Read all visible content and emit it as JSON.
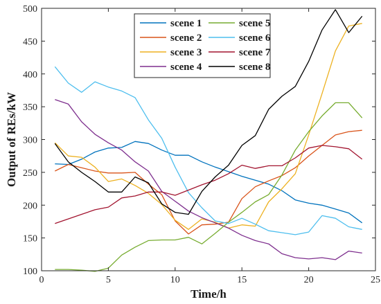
{
  "chart_data": {
    "type": "line",
    "xlabel": "Time/h",
    "ylabel": "Output of REs/kW",
    "xlim": [
      0,
      25
    ],
    "ylim": [
      100,
      500
    ],
    "xticks": [
      "0",
      "5",
      "10",
      "15",
      "20",
      "25"
    ],
    "yticks": [
      "100",
      "150",
      "200",
      "250",
      "300",
      "350",
      "400",
      "450",
      "500"
    ],
    "grid": false,
    "legend_position": "top-center",
    "legend_columns": 2,
    "x": [
      1,
      2,
      3,
      4,
      5,
      6,
      7,
      8,
      9,
      10,
      11,
      12,
      13,
      14,
      15,
      16,
      17,
      18,
      19,
      20,
      21,
      22,
      23,
      24
    ],
    "series": [
      {
        "name": "scene 1",
        "color": "#0072BD",
        "values": [
          263,
          262,
          270,
          281,
          287,
          288,
          297,
          294,
          284,
          276,
          276,
          266,
          258,
          251,
          244,
          238,
          232,
          222,
          208,
          203,
          200,
          194,
          188,
          173
        ]
      },
      {
        "name": "scene 2",
        "color": "#D95319",
        "values": [
          252,
          262,
          257,
          252,
          249,
          249,
          250,
          232,
          216,
          176,
          156,
          170,
          171,
          174,
          210,
          228,
          237,
          245,
          257,
          275,
          291,
          307,
          312,
          314
        ]
      },
      {
        "name": "scene 3",
        "color": "#EDB120",
        "values": [
          295,
          275,
          273,
          258,
          236,
          240,
          230,
          218,
          201,
          177,
          163,
          179,
          174,
          165,
          170,
          168,
          205,
          225,
          248,
          307,
          370,
          435,
          473,
          477
        ]
      },
      {
        "name": "scene 4",
        "color": "#7E2F8E",
        "values": [
          361,
          354,
          327,
          308,
          295,
          284,
          266,
          252,
          221,
          206,
          191,
          181,
          173,
          165,
          154,
          146,
          141,
          126,
          120,
          118,
          120,
          117,
          130,
          127
        ]
      },
      {
        "name": "scene 5",
        "color": "#77AC30",
        "values": [
          102,
          102,
          101,
          99,
          104,
          124,
          136,
          146,
          147,
          147,
          151,
          141,
          157,
          174,
          189,
          205,
          216,
          246,
          284,
          312,
          336,
          356,
          356,
          333
        ]
      },
      {
        "name": "scene 6",
        "color": "#4DBEEE",
        "values": [
          411,
          386,
          372,
          388,
          380,
          374,
          364,
          330,
          302,
          258,
          219,
          196,
          176,
          172,
          180,
          171,
          161,
          158,
          155,
          159,
          184,
          180,
          167,
          163
        ]
      },
      {
        "name": "scene 7",
        "color": "#A2142F",
        "values": [
          172,
          179,
          186,
          193,
          197,
          211,
          214,
          220,
          220,
          215,
          223,
          231,
          238,
          248,
          261,
          256,
          260,
          260,
          272,
          287,
          291,
          289,
          286,
          270
        ]
      },
      {
        "name": "scene 8",
        "color": "#000000",
        "values": [
          294,
          266,
          250,
          236,
          220,
          220,
          243,
          234,
          202,
          189,
          186,
          221,
          243,
          261,
          291,
          306,
          346,
          366,
          381,
          419,
          467,
          498,
          463,
          488
        ]
      }
    ]
  }
}
